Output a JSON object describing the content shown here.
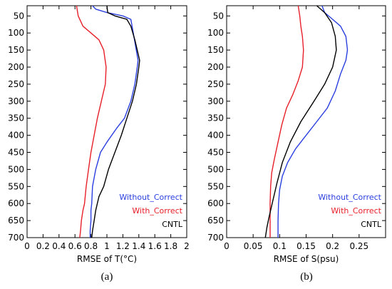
{
  "panel_labels": [
    "(a)",
    "(b)"
  ],
  "chart_data": [
    {
      "type": "line",
      "xlabel": "RMSE of T(°C)",
      "ylabel": "",
      "xlim": [
        0,
        2
      ],
      "ylim": [
        700,
        20
      ],
      "y_reversed": true,
      "xticks": [
        0,
        0.2,
        0.4,
        0.6,
        0.8,
        1,
        1.2,
        1.4,
        1.6,
        1.8,
        2
      ],
      "xtick_labels": [
        "0",
        "0.2",
        "0.4",
        "0.6",
        "0.8",
        "1",
        "1.2",
        "1.4",
        "1.6",
        "1.8",
        "2"
      ],
      "yticks": [
        50,
        100,
        150,
        200,
        250,
        300,
        350,
        400,
        450,
        500,
        550,
        600,
        650,
        700
      ],
      "ytick_labels": [
        "50",
        "100",
        "150",
        "200",
        "250",
        "300",
        "350",
        "400",
        "450",
        "500",
        "550",
        "600",
        "650",
        "700"
      ],
      "legend_position": "bottom-right",
      "series": [
        {
          "name": "Without_Correct",
          "color": "#2b3fe0",
          "x": [
            0.82,
            0.86,
            1.0,
            1.2,
            1.3,
            1.33,
            1.39,
            1.38,
            1.35,
            1.3,
            1.22,
            1.12,
            1.0,
            0.92,
            0.86,
            0.82,
            0.81,
            0.8,
            0.8,
            0.79,
            0.79
          ],
          "y": [
            20,
            30,
            40,
            50,
            60,
            100,
            180,
            200,
            250,
            300,
            350,
            380,
            420,
            450,
            500,
            550,
            600,
            620,
            650,
            680,
            700
          ]
        },
        {
          "name": "With_Correct",
          "color": "#e8202a",
          "x": [
            0.62,
            0.64,
            0.7,
            0.8,
            0.9,
            0.96,
            0.99,
            0.98,
            0.93,
            0.88,
            0.84,
            0.8,
            0.77,
            0.74,
            0.72,
            0.7,
            0.68,
            0.67,
            0.66
          ],
          "y": [
            20,
            50,
            80,
            100,
            120,
            150,
            200,
            250,
            300,
            350,
            400,
            450,
            500,
            550,
            600,
            620,
            650,
            680,
            700
          ]
        },
        {
          "name": "CNTL",
          "color": "#000000",
          "x": [
            1.0,
            1.01,
            1.1,
            1.25,
            1.3,
            1.35,
            1.41,
            1.4,
            1.37,
            1.32,
            1.25,
            1.18,
            1.1,
            1.02,
            0.96,
            0.9,
            0.86,
            0.84,
            0.82,
            0.81
          ],
          "y": [
            20,
            40,
            50,
            60,
            80,
            120,
            180,
            200,
            250,
            300,
            350,
            400,
            450,
            500,
            550,
            580,
            620,
            650,
            680,
            700
          ]
        }
      ]
    },
    {
      "type": "line",
      "xlabel": "RMSE of S(psu)",
      "ylabel": "",
      "xlim": [
        0,
        0.3
      ],
      "ylim": [
        700,
        20
      ],
      "y_reversed": true,
      "xticks": [
        0,
        0.05,
        0.1,
        0.15,
        0.2,
        0.25
      ],
      "xtick_labels": [
        "0",
        "0.05",
        "0.1",
        "0.15",
        "0.2",
        "0.25"
      ],
      "yticks": [
        50,
        100,
        150,
        200,
        250,
        300,
        350,
        400,
        450,
        500,
        550,
        600,
        650,
        700
      ],
      "ytick_labels": [
        "50",
        "100",
        "150",
        "200",
        "250",
        "300",
        "350",
        "400",
        "450",
        "500",
        "550",
        "600",
        "650",
        "700"
      ],
      "legend_position": "bottom-right",
      "series": [
        {
          "name": "Without_Correct",
          "color": "#2b3fe0",
          "x": [
            0.18,
            0.185,
            0.2,
            0.215,
            0.225,
            0.228,
            0.225,
            0.215,
            0.205,
            0.19,
            0.17,
            0.15,
            0.13,
            0.115,
            0.105,
            0.1,
            0.098,
            0.097,
            0.097
          ],
          "y": [
            20,
            40,
            60,
            80,
            110,
            150,
            180,
            220,
            270,
            320,
            360,
            400,
            440,
            480,
            520,
            560,
            600,
            650,
            700
          ]
        },
        {
          "name": "With_Correct",
          "color": "#e8202a",
          "x": [
            0.135,
            0.138,
            0.14,
            0.143,
            0.145,
            0.143,
            0.135,
            0.125,
            0.113,
            0.104,
            0.097,
            0.09,
            0.085,
            0.083,
            0.082,
            0.082,
            0.082,
            0.082
          ],
          "y": [
            20,
            50,
            80,
            110,
            150,
            200,
            240,
            280,
            320,
            370,
            420,
            470,
            510,
            550,
            600,
            630,
            670,
            700
          ]
        },
        {
          "name": "CNTL",
          "color": "#000000",
          "x": [
            0.17,
            0.185,
            0.198,
            0.205,
            0.207,
            0.2,
            0.185,
            0.165,
            0.14,
            0.12,
            0.105,
            0.095,
            0.086,
            0.08,
            0.076,
            0.073
          ],
          "y": [
            20,
            40,
            70,
            110,
            150,
            200,
            250,
            300,
            360,
            420,
            480,
            540,
            600,
            640,
            670,
            700
          ]
        }
      ]
    }
  ]
}
